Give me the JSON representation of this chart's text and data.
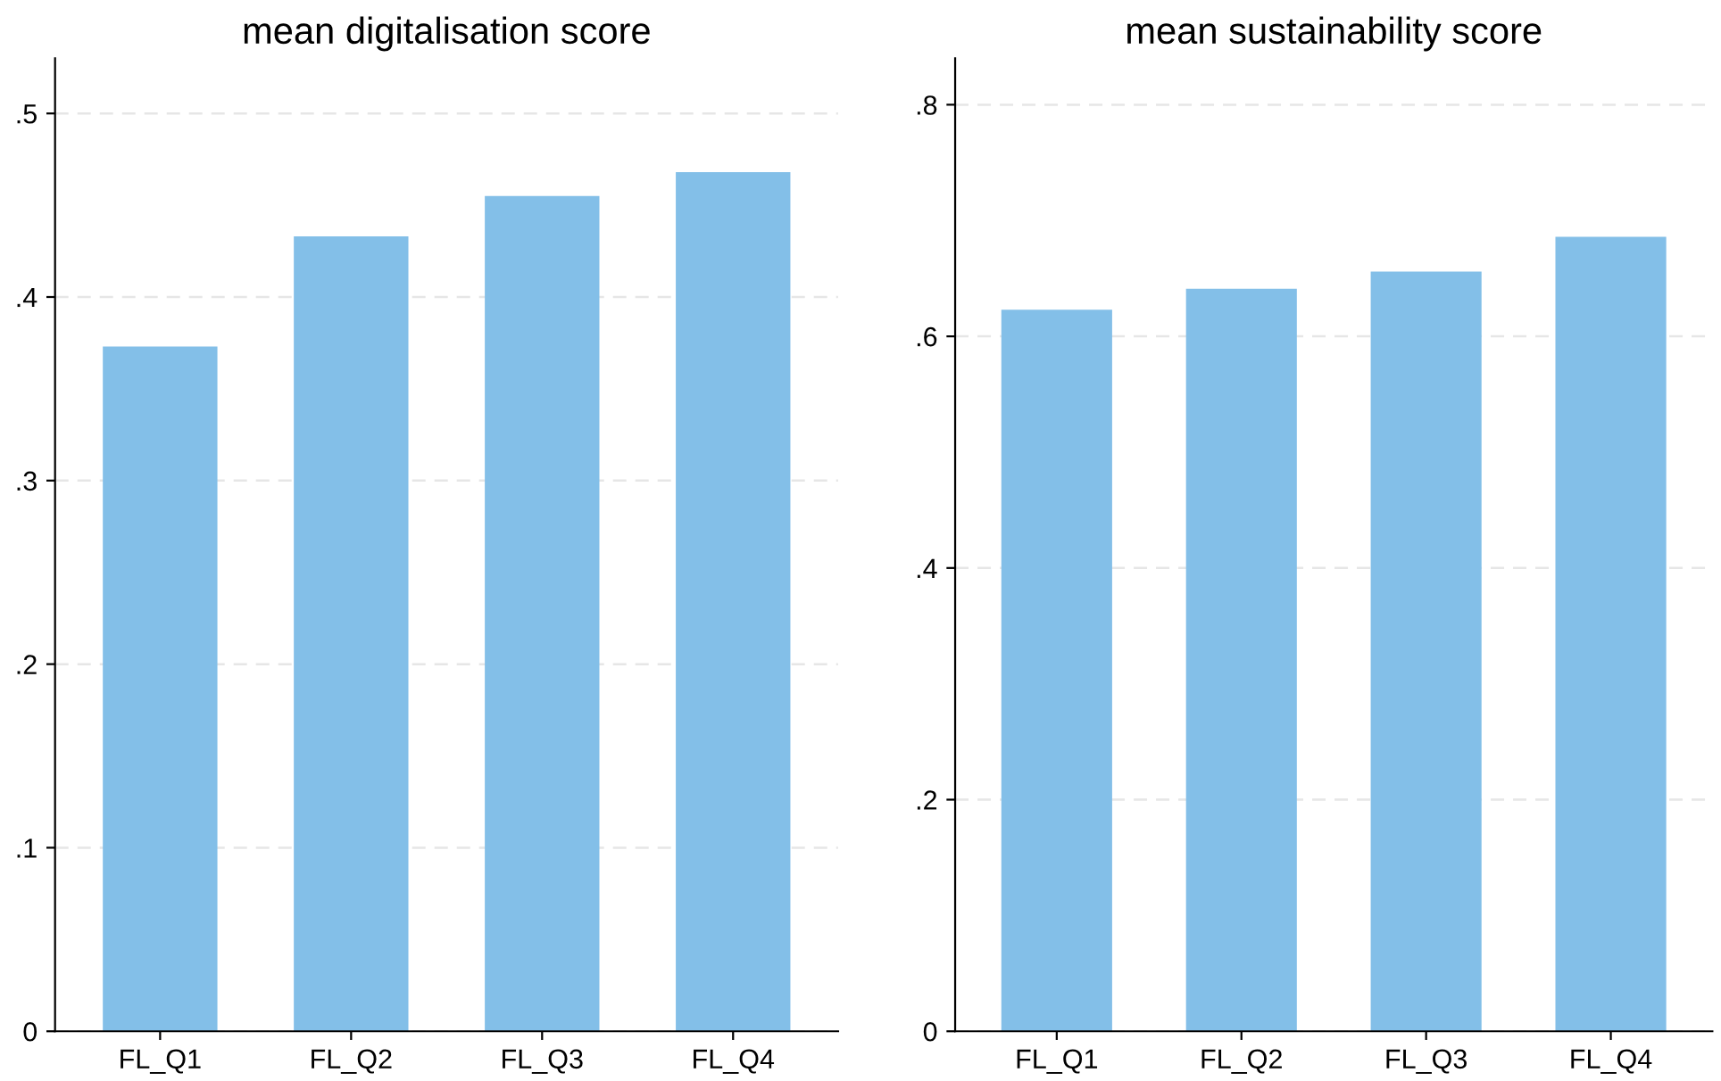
{
  "chart_data": [
    {
      "type": "bar",
      "title": "mean digitalisation score",
      "categories": [
        "FL_Q1",
        "FL_Q2",
        "FL_Q3",
        "FL_Q4"
      ],
      "values": [
        0.373,
        0.433,
        0.455,
        0.468
      ],
      "color": "#83bfe8",
      "ylim": [
        0,
        0.53
      ],
      "yticks": [
        {
          "value": 0,
          "label": "0"
        },
        {
          "value": 0.1,
          "label": ".1"
        },
        {
          "value": 0.2,
          "label": ".2"
        },
        {
          "value": 0.3,
          "label": ".3"
        },
        {
          "value": 0.4,
          "label": ".4"
        },
        {
          "value": 0.5,
          "label": ".5"
        }
      ],
      "grid": "y"
    },
    {
      "type": "bar",
      "title": "mean sustainability score",
      "categories": [
        "FL_Q1",
        "FL_Q2",
        "FL_Q3",
        "FL_Q4"
      ],
      "values": [
        0.623,
        0.641,
        0.656,
        0.686
      ],
      "color": "#83bfe8",
      "ylim": [
        0,
        0.84
      ],
      "yticks": [
        {
          "value": 0,
          "label": "0"
        },
        {
          "value": 0.2,
          "label": ".2"
        },
        {
          "value": 0.4,
          "label": ".4"
        },
        {
          "value": 0.6,
          "label": ".6"
        },
        {
          "value": 0.8,
          "label": ".8"
        }
      ],
      "grid": "y"
    }
  ]
}
